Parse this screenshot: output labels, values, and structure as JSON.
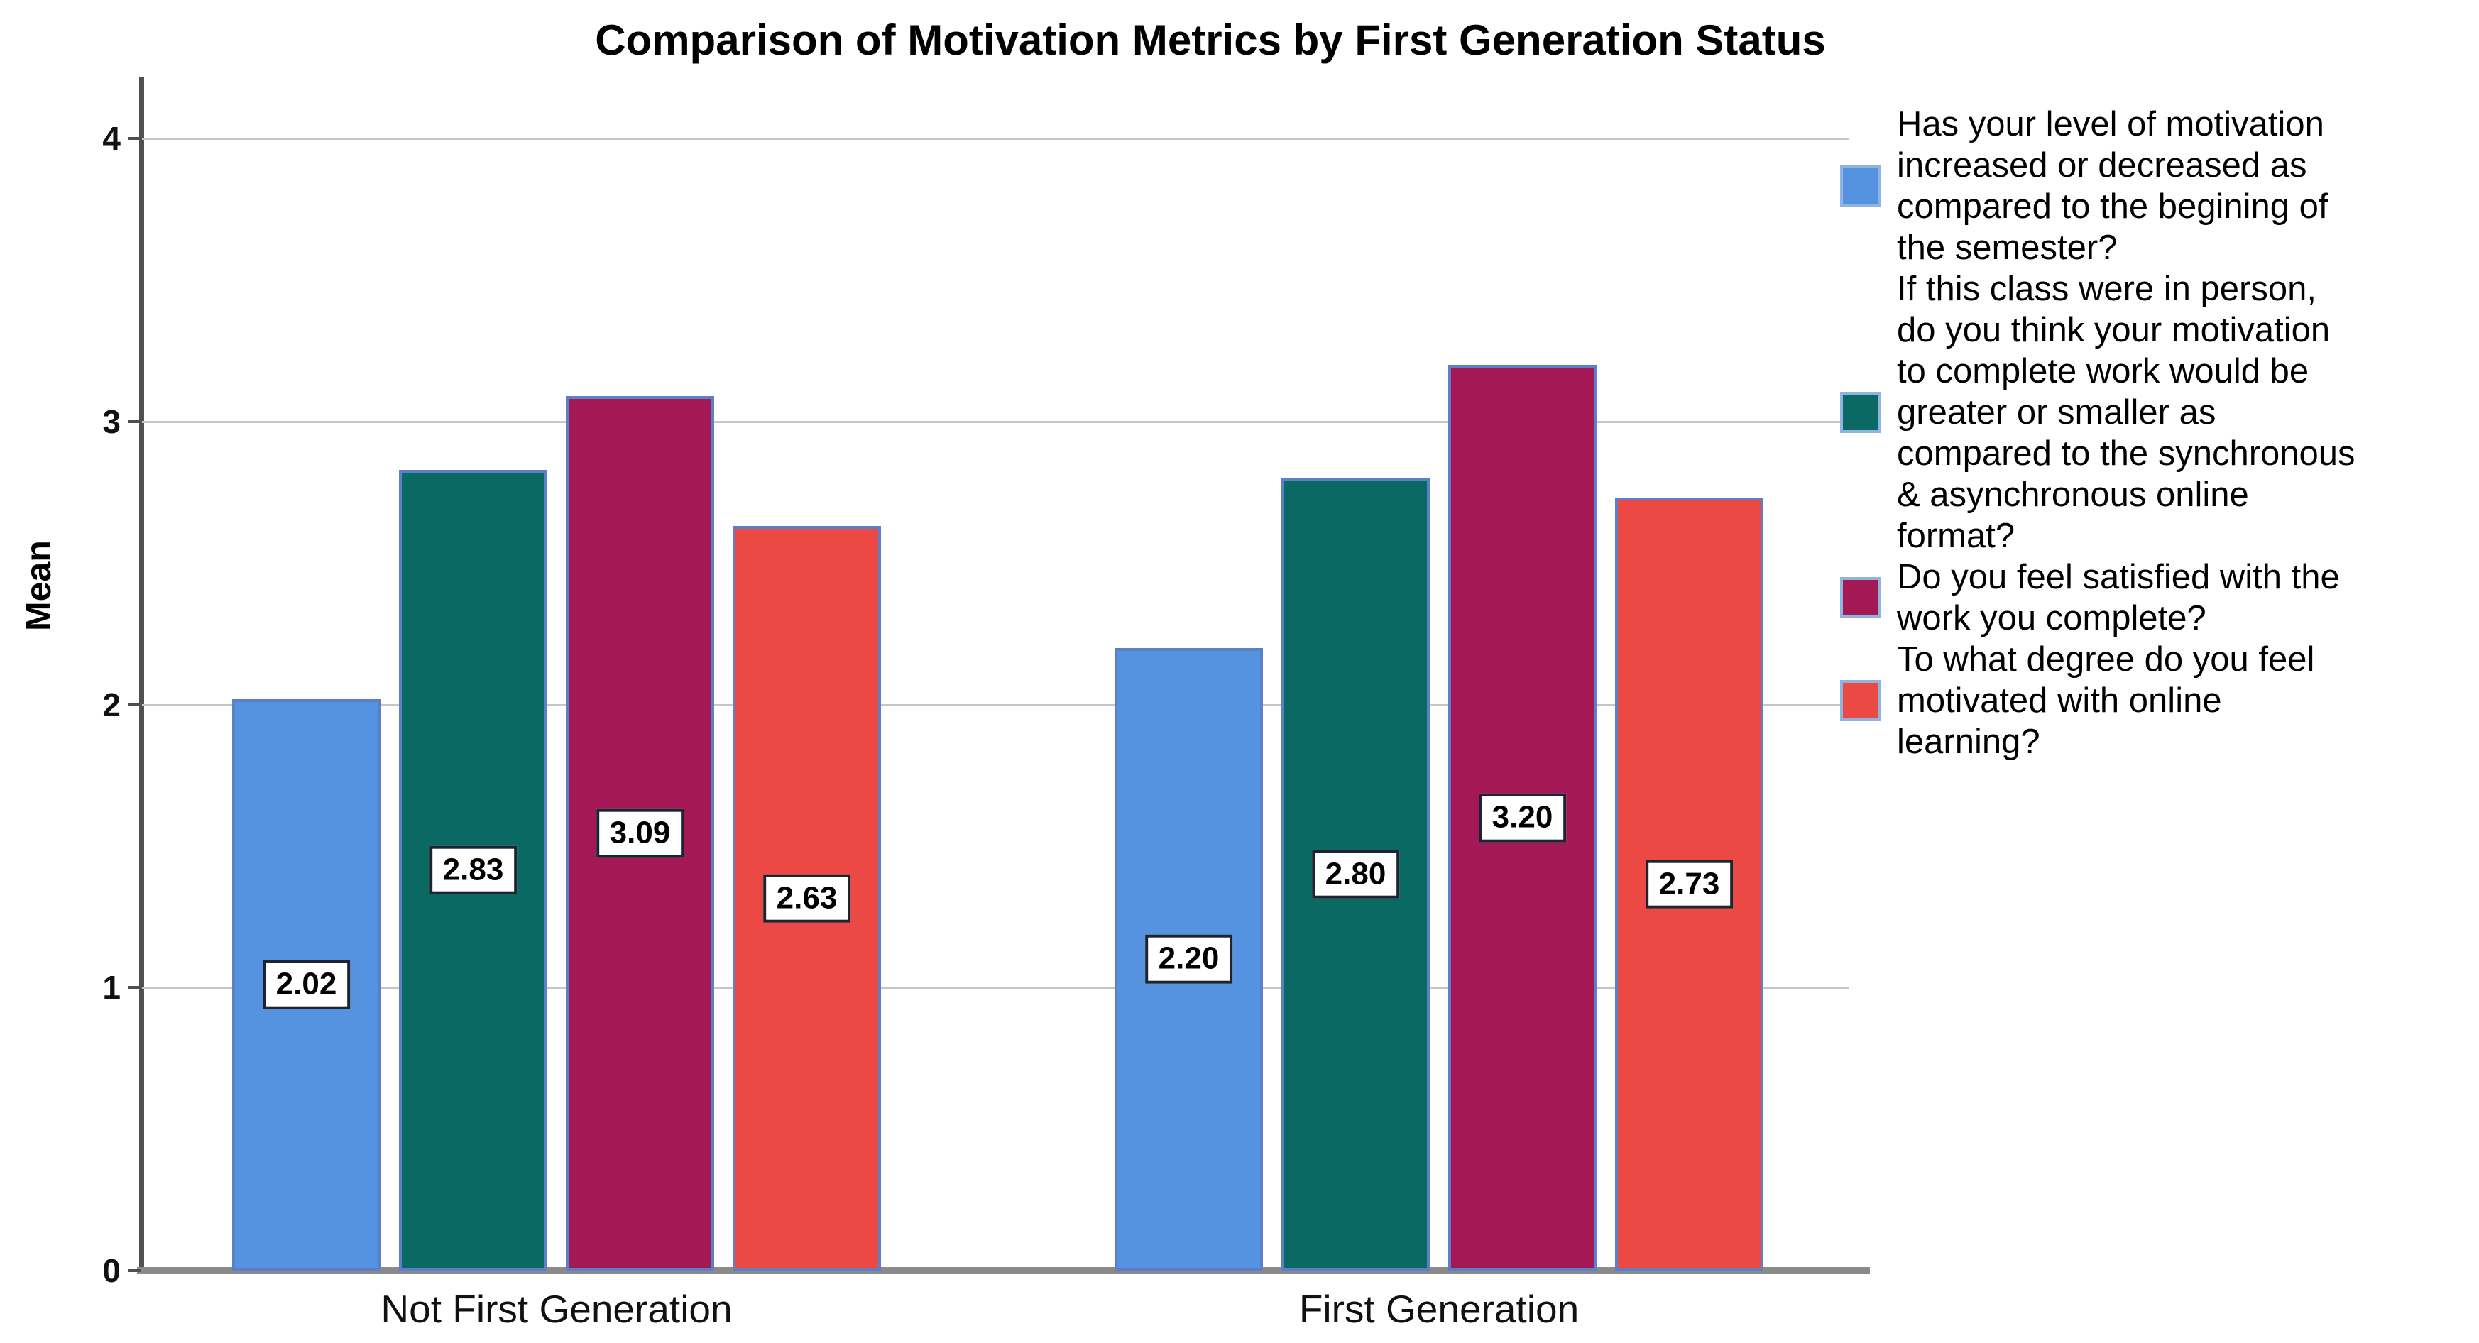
{
  "title": "Comparison of Motivation Metrics by First Generation Status",
  "y_axis": {
    "label": "Mean",
    "ticks": [
      "0",
      "1",
      "2",
      "3",
      "4"
    ]
  },
  "x_axis": {
    "categories": [
      "Not First Generation",
      "First Generation"
    ]
  },
  "colors": {
    "series_blue": "#5592e0",
    "series_teal": "#0a6a63",
    "series_maroon": "#a31855",
    "series_salmon": "#ec4944",
    "bar_border": "#5c7fc9",
    "gridline": "#c6c6c6",
    "x_axis_line": "#8a8a8a",
    "y_axis_line": "#505050"
  },
  "chart_data": {
    "type": "bar",
    "title": "Comparison of Motivation Metrics by First Generation Status",
    "xlabel": "",
    "ylabel": "Mean",
    "ylim": [
      0,
      4
    ],
    "grid": true,
    "legend_position": "right",
    "categories": [
      "Not First Generation",
      "First Generation"
    ],
    "series": [
      {
        "name": "Has your level of motivation increased or decreased as compared to the begining of the semester?",
        "color": "#5592e0",
        "values": [
          2.02,
          2.2
        ],
        "value_labels": [
          "2.02",
          "2.20"
        ]
      },
      {
        "name": "If this class were in person, do you think your motivation to complete work would be greater or smaller as compared to the synchronous & asynchronous online format?",
        "color": "#0a6a63",
        "values": [
          2.83,
          2.8
        ],
        "value_labels": [
          "2.83",
          "2.80"
        ]
      },
      {
        "name": "Do you feel satisfied with the work you complete?",
        "color": "#a31855",
        "values": [
          3.09,
          3.2
        ],
        "value_labels": [
          "3.09",
          "3.20"
        ]
      },
      {
        "name": "To what degree do you feel motivated with online learning?",
        "color": "#ec4944",
        "values": [
          2.63,
          2.73
        ],
        "value_labels": [
          "2.63",
          "2.73"
        ]
      }
    ]
  },
  "legend": {
    "entries": [
      {
        "label": "Has your level of motivation\nincreased or decreased as\ncompared to the begining of\nthe semester?",
        "color": "#5592e0"
      },
      {
        "label": "If this class were in person,\ndo you think your motivation\nto complete work would be\ngreater or smaller as\ncompared to the synchronous\n& asynchronous online\nformat?",
        "color": "#0a6a63"
      },
      {
        "label": "Do you feel satisfied with the\nwork you complete?",
        "color": "#a31855"
      },
      {
        "label": "To what degree do you feel\nmotivated with online\nlearning?",
        "color": "#ec4944"
      }
    ]
  }
}
